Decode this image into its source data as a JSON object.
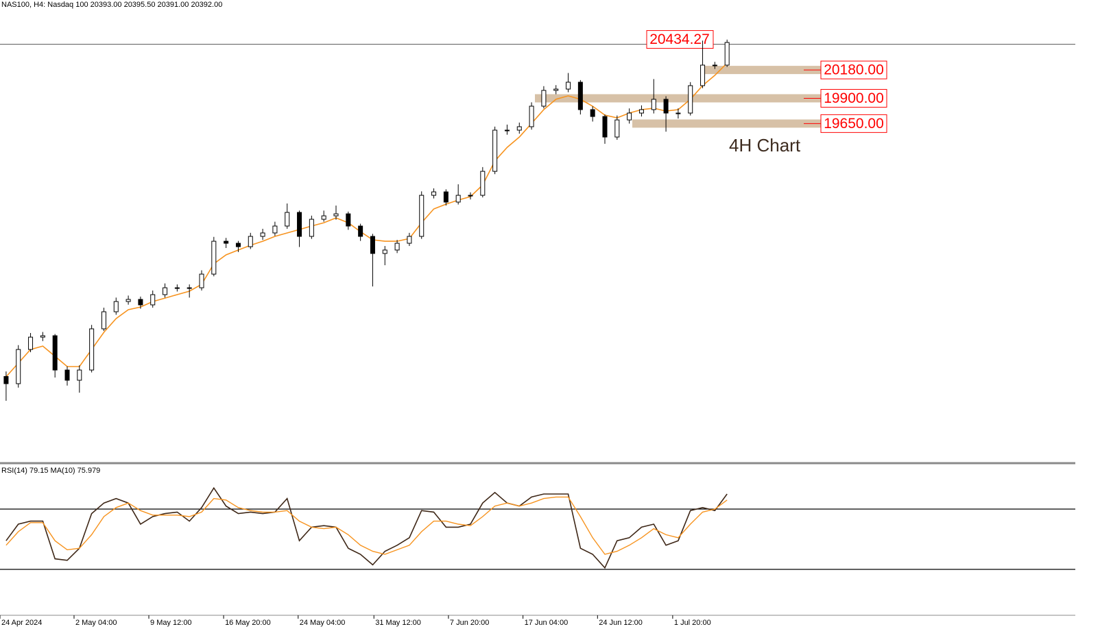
{
  "chart_data": [
    {
      "type": "candlestick",
      "title": "NAS100, H4:  Nasdaq 100  20393.00 20395.50 20391.00 20392.00",
      "annotation": "4H Chart",
      "open": [
        17150,
        17079,
        17417,
        17539,
        17553,
        17214,
        17113,
        17214,
        17621,
        17790,
        17891,
        17912,
        17858,
        17959,
        18027,
        18027,
        18027,
        18162,
        18487,
        18467,
        18433,
        18535,
        18569,
        18637,
        18772,
        18535,
        18704,
        18738,
        18758,
        18637,
        18535,
        18366,
        18400,
        18467,
        18535,
        18941,
        18975,
        18874,
        18941,
        18941,
        19178,
        19585,
        19585,
        19619,
        19822,
        19978,
        19991,
        20059,
        19788,
        19720,
        19517,
        19686,
        19754,
        19788,
        19890,
        19754,
        19754,
        20025,
        20228,
        20228
      ],
      "high": [
        17200,
        17460,
        17580,
        17590,
        17570,
        17250,
        17260,
        17660,
        17830,
        17930,
        17950,
        17940,
        18000,
        18070,
        18060,
        18060,
        18200,
        18530,
        18520,
        18490,
        18570,
        18610,
        18680,
        18860,
        18790,
        18740,
        18790,
        18840,
        18780,
        18660,
        18560,
        18440,
        18500,
        18570,
        18980,
        19010,
        19000,
        19050,
        18970,
        19220,
        19620,
        19640,
        19660,
        19860,
        20020,
        20030,
        20150,
        20080,
        19820,
        19740,
        19730,
        19800,
        19830,
        20090,
        19920,
        19800,
        20060,
        20470,
        20260,
        20480
      ],
      "low": [
        16910,
        17040,
        17390,
        17500,
        17140,
        17060,
        16990,
        17190,
        17600,
        17760,
        17860,
        17820,
        17830,
        17930,
        17990,
        17930,
        18000,
        18140,
        18420,
        18380,
        18410,
        18500,
        18540,
        18610,
        18430,
        18510,
        18680,
        18700,
        18600,
        18490,
        18040,
        18250,
        18370,
        18440,
        18510,
        18910,
        18840,
        18850,
        18900,
        18920,
        19150,
        19540,
        19550,
        19590,
        19800,
        19940,
        19960,
        19740,
        19670,
        19450,
        19490,
        19650,
        19720,
        19750,
        19570,
        19700,
        19730,
        20000,
        20190,
        20210
      ],
      "close": [
        17079,
        17417,
        17539,
        17553,
        17214,
        17113,
        17214,
        17621,
        17790,
        17891,
        17912,
        17858,
        17959,
        18027,
        18027,
        18027,
        18162,
        18487,
        18467,
        18433,
        18535,
        18569,
        18637,
        18772,
        18535,
        18704,
        18738,
        18758,
        18637,
        18535,
        18366,
        18400,
        18467,
        18535,
        18941,
        18975,
        18874,
        18941,
        18941,
        19178,
        19585,
        19585,
        19619,
        19822,
        19978,
        19991,
        20059,
        19788,
        19720,
        19517,
        19686,
        19754,
        19788,
        19890,
        19754,
        19754,
        20025,
        20228,
        20228,
        20452
      ],
      "ma": {
        "color": "#f7931e",
        "values": [
          17147,
          17282,
          17417,
          17451,
          17350,
          17248,
          17248,
          17417,
          17587,
          17722,
          17810,
          17837,
          17891,
          17925,
          17959,
          17993,
          18061,
          18264,
          18352,
          18400,
          18447,
          18487,
          18535,
          18569,
          18603,
          18637,
          18670,
          18718,
          18670,
          18582,
          18501,
          18487,
          18487,
          18514,
          18670,
          18806,
          18853,
          18894,
          18928,
          19043,
          19280,
          19415,
          19517,
          19652,
          19788,
          19890,
          19924,
          19890,
          19822,
          19734,
          19707,
          19754,
          19788,
          19802,
          19774,
          19788,
          19890,
          20025,
          20127,
          20248
        ]
      },
      "current_price": 20434.27,
      "levels": [
        {
          "value": 20180,
          "label": "20180.00"
        },
        {
          "value": 19900,
          "label": "19900.00"
        },
        {
          "value": 19650,
          "label": "19650.00"
        }
      ],
      "candle_color": "#000000",
      "level_color": "#ff0000",
      "band_color": "#d7c1a7",
      "ylim": [
        16300,
        20770
      ],
      "xlim": [
        0,
        88
      ]
    },
    {
      "type": "line",
      "title": "RSI(14) 79.15 MA(10) 75.979",
      "series": [
        {
          "color": "#3d2616",
          "values": [
            49,
            60,
            62,
            62,
            37,
            36,
            44,
            67,
            74,
            77,
            74,
            60,
            65,
            67,
            68,
            62,
            71,
            84,
            72,
            67,
            68,
            67,
            68,
            77,
            49,
            58,
            59,
            58,
            44,
            40,
            33,
            42,
            46,
            51,
            69,
            68,
            58,
            58,
            60,
            74,
            81,
            74,
            72,
            78,
            80,
            80,
            80,
            44,
            40,
            31,
            49,
            51,
            58,
            60,
            46,
            49,
            69,
            71,
            69,
            80
          ]
        },
        {
          "color": "#f7931e",
          "values": [
            46,
            55,
            61,
            61,
            49,
            43,
            44,
            53,
            65,
            71,
            74,
            69,
            66,
            66,
            66,
            65,
            68,
            77,
            76,
            71,
            69,
            68,
            68,
            69,
            62,
            58,
            57,
            58,
            53,
            46,
            42,
            40,
            43,
            46,
            55,
            62,
            62,
            60,
            59,
            65,
            72,
            74,
            72,
            74,
            77,
            78,
            78,
            65,
            51,
            40,
            42,
            46,
            51,
            57,
            53,
            51,
            60,
            68,
            70,
            76
          ]
        }
      ],
      "levels": [
        70,
        30
      ],
      "ylim": [
        0,
        100
      ],
      "xlim": [
        0,
        88
      ],
      "xticks": [
        {
          "value": 0,
          "label": "24 Apr 2024"
        },
        {
          "value": 6.06,
          "label": "2 May 04:00"
        },
        {
          "value": 12.18,
          "label": "9 May 12:00"
        },
        {
          "value": 18.3,
          "label": "16 May 20:00"
        },
        {
          "value": 24.4,
          "label": "24 May 04:00"
        },
        {
          "value": 30.6,
          "label": "31 May 12:00"
        },
        {
          "value": 36.7,
          "label": "7 Jun 20:00"
        },
        {
          "value": 42.8,
          "label": "17 Jun 04:00"
        },
        {
          "value": 48.9,
          "label": "24 Jun 12:00"
        },
        {
          "value": 55.05,
          "label": "1 Jul 20:00"
        }
      ]
    }
  ]
}
